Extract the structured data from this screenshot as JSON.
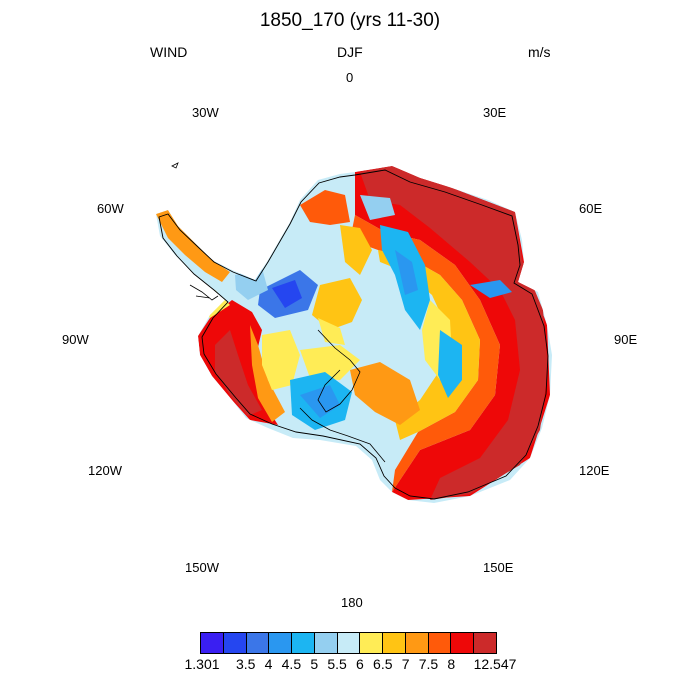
{
  "title": "1850_170 (yrs 11-30)",
  "left_string": "WIND",
  "center_string": "DJF",
  "right_string": "m/s",
  "longitude_labels": [
    {
      "text": "0"
    },
    {
      "text": "30E"
    },
    {
      "text": "60E"
    },
    {
      "text": "90E"
    },
    {
      "text": "120E"
    },
    {
      "text": "150E"
    },
    {
      "text": "180"
    },
    {
      "text": "150W"
    },
    {
      "text": "120W"
    },
    {
      "text": "90W"
    },
    {
      "text": "60W"
    },
    {
      "text": "30W"
    }
  ],
  "colorbar": {
    "colors": [
      "#3a1ff2",
      "#2546f0",
      "#3b76e8",
      "#2a97f0",
      "#1cb5f2",
      "#94cff0",
      "#c7ebf7",
      "#ffec56",
      "#ffc414",
      "#ff9914",
      "#ff5a0a",
      "#ee0808",
      "#cc2a2a"
    ],
    "labels": [
      "1.301",
      "3.5",
      "4",
      "4.5",
      "5",
      "5.5",
      "6",
      "6.5",
      "7",
      "7.5",
      "8",
      "12.547"
    ]
  },
  "map": {
    "projection": "south polar stereographic",
    "region": "Antarctica",
    "variable": "WIND",
    "season": "DJF",
    "units": "m/s"
  }
}
